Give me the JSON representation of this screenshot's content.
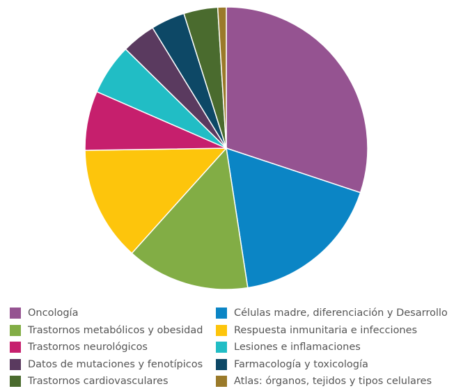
{
  "chart_data": {
    "type": "pie",
    "title": "",
    "start_angle_deg": 0,
    "direction": "clockwise",
    "slices": [
      {
        "label": "Oncología",
        "value": 31.0,
        "color": "#955391"
      },
      {
        "label": "Células madre, diferenciación y Desarrollo",
        "value": 18.0,
        "color": "#0b85c5"
      },
      {
        "label": "Trastornos metabólicos y obesidad",
        "value": 14.5,
        "color": "#82ad45"
      },
      {
        "label": "Respuesta inmunitaria e infecciones",
        "value": 13.5,
        "color": "#fdc50c"
      },
      {
        "label": "Trastornos neurológicos",
        "value": 7.0,
        "color": "#c61f6d"
      },
      {
        "label": "Lesiones e inflamaciones",
        "value": 6.0,
        "color": "#21bdc5"
      },
      {
        "label": "Datos de mutaciones y fenotípicos",
        "value": 4.0,
        "color": "#5a3a5f"
      },
      {
        "label": "Farmacología y toxicología",
        "value": 4.0,
        "color": "#0d4866"
      },
      {
        "label": "Trastornos cardiovasculares",
        "value": 4.0,
        "color": "#4a6b2e"
      },
      {
        "label": "Atlas: órganos, tejidos y tipos celulares",
        "value": 1.0,
        "color": "#9a7a2a"
      }
    ],
    "legend_position": "bottom"
  }
}
